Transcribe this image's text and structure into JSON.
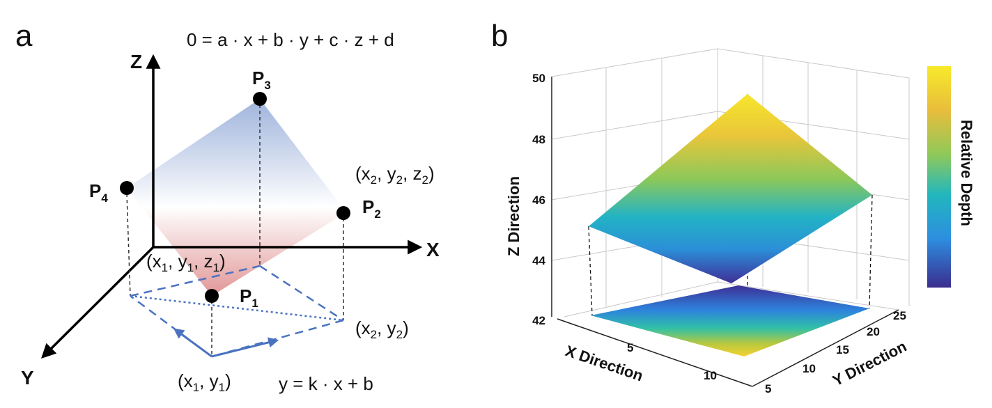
{
  "panel_a": {
    "letter": "a",
    "plane_equation": "0 = a · x + b · y + c · z + d",
    "axes": {
      "z": "Z",
      "x": "X",
      "y": "Y"
    },
    "points": [
      {
        "main": "P",
        "sub": "1"
      },
      {
        "main": "P",
        "sub": "2"
      },
      {
        "main": "P",
        "sub": "3"
      },
      {
        "main": "P",
        "sub": "4"
      }
    ],
    "coord_p1": {
      "t0": "(x",
      "s0": "1",
      "t1": ", y",
      "s1": "1",
      "t2": ", z",
      "s2": "1",
      "t3": ")"
    },
    "coord_p2": {
      "t0": "(x",
      "s0": "2",
      "t1": ", y",
      "s1": "2",
      "t2": ", z",
      "s2": "2",
      "t3": ")"
    },
    "coord_proj1": {
      "t0": "(x",
      "s0": "1",
      "t1": ", y",
      "s1": "1",
      "t2": ")"
    },
    "coord_proj2": {
      "t0": "(x",
      "s0": "2",
      "t1": ", y",
      "s1": "2",
      "t2": ")"
    },
    "line_equation": "y = k · x + b",
    "colors": {
      "plane_top": "#9fb3dc",
      "plane_bottom": "#e39a9a",
      "dashed_line": "#4a72c0",
      "point": "#000000"
    }
  },
  "panel_b": {
    "letter": "b",
    "chart_data": {
      "type": "surface3d",
      "z_axis_label": "Z Direction",
      "x_axis_label": "X Direction",
      "y_axis_label": "Y Direction",
      "z_ticks": [
        "42",
        "44",
        "46",
        "48",
        "50"
      ],
      "x_ticks": [
        "5",
        "10"
      ],
      "y_ticks": [
        "5",
        "10",
        "15",
        "20",
        "25"
      ],
      "zlim": [
        42,
        50
      ],
      "colorbar_label": "Relative Depth",
      "colormap": [
        "#3b2c8f",
        "#2f7ee0",
        "#22b5c7",
        "#4cc38a",
        "#b7c83e",
        "#f0c92f",
        "#f7e62b"
      ],
      "grid": true
    }
  }
}
